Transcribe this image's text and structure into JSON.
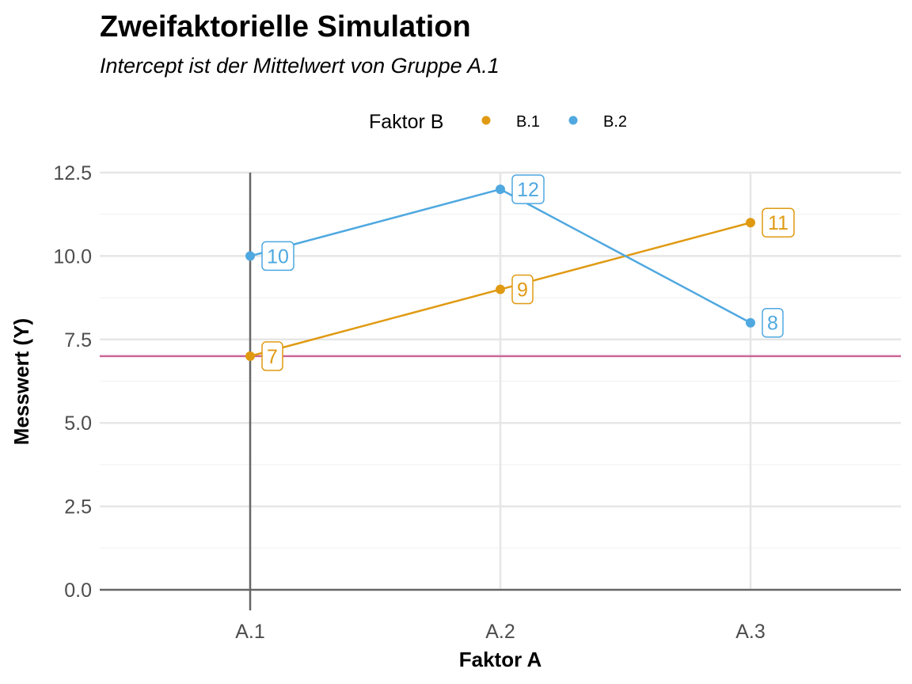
{
  "chart_data": {
    "type": "line",
    "title": "Zweifaktorielle Simulation",
    "subtitle": "Intercept ist der Mittelwert von Gruppe A.1",
    "xlabel": "Faktor A",
    "ylabel": "Messwert (Y)",
    "categories": [
      "A.1",
      "A.2",
      "A.3"
    ],
    "ylim": [
      0,
      12.5
    ],
    "yticks": [
      "0.0",
      "2.5",
      "5.0",
      "7.5",
      "10.0",
      "12.5"
    ],
    "ytick_values": [
      0,
      2.5,
      5,
      7.5,
      10,
      12.5
    ],
    "grid": true,
    "legend": {
      "title": "Faktor B",
      "placement": "top"
    },
    "series": [
      {
        "name": "B.1",
        "color": "#E09A12",
        "values": [
          7,
          9,
          11
        ],
        "labels": [
          "7",
          "9",
          "11"
        ]
      },
      {
        "name": "B.2",
        "color": "#4FA8E0",
        "values": [
          10,
          12,
          8
        ],
        "labels": [
          "10",
          "12",
          "8"
        ]
      }
    ],
    "reference_line": {
      "y": 7,
      "color": "#CC6699"
    },
    "intercept_line_color": "#666666"
  }
}
